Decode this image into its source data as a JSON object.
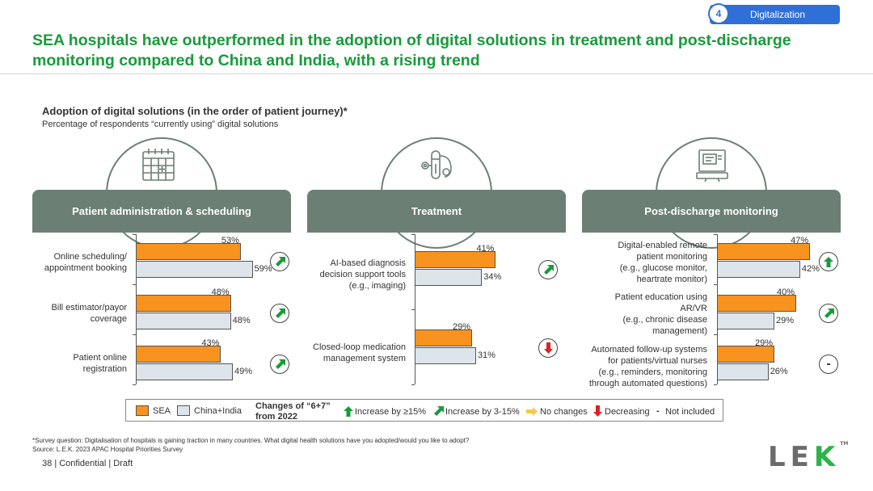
{
  "section_tag": {
    "number": "4",
    "label": "Digitalization"
  },
  "title": "SEA hospitals have outperformed in the adoption of digital solutions in treatment and post-discharge monitoring compared to China and India, with a rising trend",
  "chart_title": "Adoption of digital solutions (in the order of patient journey)*",
  "chart_subtitle": "Percentage of respondents “currently using” digital solutions",
  "colors": {
    "sea": "#f7931e",
    "china_india": "#dde5ea",
    "header": "#6b7f75",
    "title": "#1a9a3c",
    "increase": "#1a9a3c",
    "decrease": "#e02020",
    "nochange": "#f7c948"
  },
  "chart_data": [
    {
      "type": "bar",
      "orientation": "horizontal",
      "title": "Patient administration & scheduling",
      "icon": "calendar-icon",
      "categories": [
        "Online scheduling/ appointment booking",
        "Bill estimator/payor coverage",
        "Patient online registration"
      ],
      "series": [
        {
          "name": "SEA",
          "values": [
            53,
            48,
            43
          ]
        },
        {
          "name": "China+India",
          "values": [
            59,
            48,
            49
          ]
        }
      ],
      "changes": [
        "increase-3-15",
        "increase-3-15",
        "increase-3-15"
      ],
      "unit": "%"
    },
    {
      "type": "bar",
      "orientation": "horizontal",
      "title": "Treatment",
      "icon": "medical-devices-icon",
      "categories": [
        "AI-based diagnosis decision support tools (e.g., imaging)",
        "Closed-loop medication management system"
      ],
      "series": [
        {
          "name": "SEA",
          "values": [
            41,
            29
          ]
        },
        {
          "name": "China+India",
          "values": [
            34,
            31
          ]
        }
      ],
      "changes": [
        "increase-3-15",
        "decreasing"
      ],
      "unit": "%"
    },
    {
      "type": "bar",
      "orientation": "horizontal",
      "title": "Post-discharge monitoring",
      "icon": "monitor-icon",
      "categories": [
        "Digital-enabled remote patient monitoring (e.g., glucose monitor, heartrate monitor)",
        "Patient education using AR/VR (e.g., chronic disease management)",
        "Automated follow-up systems for patients/virtual nurses (e.g., reminders, monitoring through automated questions)"
      ],
      "series": [
        {
          "name": "SEA",
          "values": [
            47,
            40,
            29
          ]
        },
        {
          "name": "China+India",
          "values": [
            42,
            29,
            26
          ]
        }
      ],
      "changes": [
        "increase-15",
        "increase-3-15",
        "not-included"
      ],
      "unit": "%"
    }
  ],
  "panels": [
    {
      "header": "Patient administration & scheduling",
      "labels": [
        [
          "Online scheduling/",
          "appointment booking"
        ],
        [
          "Bill estimator/payor",
          "coverage"
        ],
        [
          "Patient online",
          "registration"
        ]
      ],
      "sea": [
        "53%",
        "48%",
        "43%"
      ],
      "cn": [
        "59%",
        "48%",
        "49%"
      ]
    },
    {
      "header": "Treatment",
      "labels": [
        [
          "AI-based diagnosis",
          "decision support tools",
          "(e.g., imaging)"
        ],
        [
          "Closed-loop medication",
          "management system"
        ]
      ],
      "sea": [
        "41%",
        "29%"
      ],
      "cn": [
        "34%",
        "31%"
      ]
    },
    {
      "header": "Post-discharge monitoring",
      "labels": [
        [
          "Digital-enabled remote",
          "patient monitoring",
          "(e.g., glucose monitor,",
          "heartrate monitor)"
        ],
        [
          "Patient education using",
          "AR/VR",
          "(e.g., chronic disease",
          "management)"
        ],
        [
          "Automated follow-up systems",
          "for patients/virtual nurses",
          "(e.g., reminders, monitoring",
          "through automated questions)"
        ]
      ],
      "sea": [
        "47%",
        "40%",
        "29%"
      ],
      "cn": [
        "42%",
        "29%",
        "26%"
      ]
    }
  ],
  "legend": {
    "sea": "SEA",
    "china_india": "China+India",
    "changes_label": "Changes of “6+7” from 2022",
    "inc15": "Increase by ≥15%",
    "inc3": "Increase by 3-15%",
    "nochange": "No changes",
    "decreasing": "Decreasing",
    "dash": "-",
    "not_included": "Not included"
  },
  "not_included_mark": "-",
  "footnote": {
    "question": "*Survey question: Digitalisation of hospitals is gaining traction in many countries. What digital health solutions have you adopted/would you like to adopt?",
    "source": "Source:  L.E.K. 2023 APAC Hospital Priorities Survey"
  },
  "footer": {
    "page": "38",
    "text": "| Confidential | Draft"
  },
  "logo": {
    "l": "L",
    "e": "E",
    "k": "K",
    "tm": "TM"
  }
}
